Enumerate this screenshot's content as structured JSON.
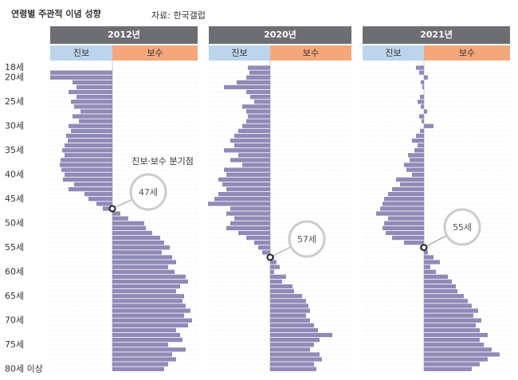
{
  "title": "연령별 주관적 이념 성향",
  "source": "자료: 한국갤럽",
  "chart_data": [
    {
      "type": "diverging-bar",
      "title": "2012년",
      "left_label": "진보",
      "right_label": "보수",
      "color": "#908ab7",
      "xlim": [
        -78,
        107
      ],
      "categories": [
        "18세",
        null,
        "20세",
        null,
        null,
        null,
        null,
        "25세",
        null,
        null,
        null,
        null,
        "30세",
        null,
        null,
        null,
        null,
        "35세",
        null,
        null,
        null,
        null,
        "40세",
        null,
        null,
        null,
        null,
        "45세",
        null,
        null,
        null,
        null,
        "50세",
        null,
        null,
        null,
        null,
        "55세",
        null,
        null,
        null,
        null,
        "60세",
        null,
        null,
        null,
        null,
        "65세",
        null,
        null,
        null,
        null,
        "70세",
        null,
        null,
        null,
        null,
        "75세",
        null,
        null,
        null,
        null,
        "80세 이상"
      ],
      "values": [
        0,
        -78,
        -78,
        -50,
        -45,
        -55,
        -45,
        -52,
        -48,
        -40,
        -50,
        -42,
        -55,
        -52,
        -58,
        -56,
        -60,
        -63,
        -60,
        -65,
        -66,
        -64,
        -60,
        -62,
        -48,
        -55,
        -35,
        -30,
        -20,
        -12,
        10,
        20,
        40,
        42,
        50,
        60,
        65,
        72,
        62,
        75,
        80,
        70,
        78,
        92,
        95,
        85,
        80,
        90,
        88,
        92,
        98,
        90,
        100,
        95,
        80,
        85,
        88,
        70,
        92,
        75,
        80,
        70,
        65
      ],
      "note": "진보·보수 분기점",
      "annotation": "47세"
    },
    {
      "type": "diverging-bar",
      "title": "2020년",
      "left_label": "진보",
      "right_label": "보수",
      "color": "#908ab7",
      "xlim": [
        -77,
        102
      ],
      "values": [
        -28,
        -26,
        -30,
        -42,
        -58,
        -30,
        -25,
        -20,
        -35,
        -30,
        -28,
        -30,
        -35,
        -40,
        -45,
        -50,
        -45,
        -58,
        -40,
        -50,
        -35,
        -58,
        -55,
        -65,
        -60,
        -55,
        -65,
        -70,
        -78,
        -50,
        -55,
        -45,
        -50,
        -55,
        -40,
        -30,
        -20,
        -15,
        -10,
        5,
        8,
        12,
        5,
        20,
        15,
        28,
        30,
        40,
        45,
        48,
        50,
        45,
        50,
        55,
        60,
        78,
        62,
        55,
        50,
        62,
        65,
        55,
        58
      ],
      "annotation": "57세"
    },
    {
      "type": "diverging-bar",
      "title": "2021년",
      "left_label": "진보",
      "right_label": "보수",
      "color": "#908ab7",
      "xlim": [
        -77,
        108
      ],
      "values": [
        -10,
        -6,
        5,
        -4,
        -2,
        0,
        -5,
        -8,
        -4,
        4,
        -6,
        -3,
        12,
        -5,
        -10,
        -15,
        -8,
        -12,
        -20,
        -18,
        -25,
        -22,
        -15,
        -35,
        -30,
        -40,
        -45,
        -50,
        -52,
        -55,
        -60,
        -45,
        -50,
        -52,
        -48,
        -40,
        -25,
        -5,
        5,
        12,
        20,
        8,
        15,
        30,
        35,
        40,
        42,
        50,
        55,
        60,
        68,
        62,
        72,
        65,
        70,
        80,
        70,
        75,
        85,
        95,
        80,
        70,
        60
      ],
      "annotation": "55세"
    }
  ]
}
